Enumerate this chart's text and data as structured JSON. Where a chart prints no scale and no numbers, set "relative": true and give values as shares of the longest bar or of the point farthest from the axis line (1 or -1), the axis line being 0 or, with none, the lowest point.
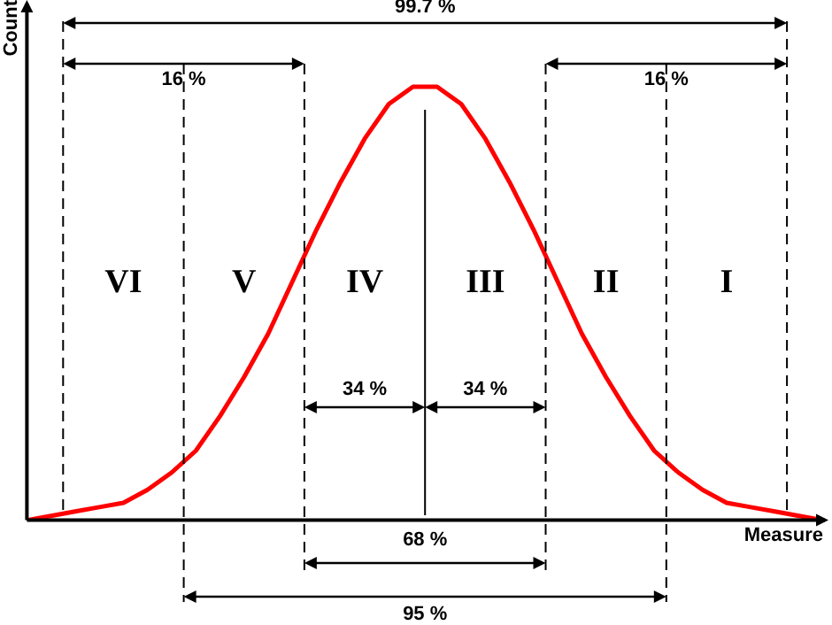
{
  "chart_data": {
    "type": "line",
    "relative": true,
    "xlabel": "Measure",
    "ylabel": "Count",
    "categories": [
      null,
      null,
      null,
      null,
      null,
      null,
      null,
      null,
      null,
      null,
      null,
      null,
      null,
      null,
      null,
      null,
      null,
      null,
      null,
      null,
      null,
      null,
      null,
      null,
      null,
      null,
      null,
      null,
      null,
      null,
      null,
      null,
      null,
      null
    ],
    "series": [
      {
        "color": "#ff0000",
        "values": [
          0,
          0.01,
          0.02,
          0.03,
          0.04,
          0.07,
          0.11,
          0.16,
          0.24,
          0.33,
          0.43,
          0.55,
          0.67,
          0.78,
          0.88,
          0.96,
          1,
          1,
          0.96,
          0.88,
          0.78,
          0.67,
          0.55,
          0.43,
          0.33,
          0.24,
          0.16,
          0.11,
          0.07,
          0.04,
          0.03,
          0.02,
          0.01,
          0
        ]
      }
    ],
    "marker": "none",
    "grid": false,
    "legend": false,
    "tick_labels": false,
    "annotations": [
      "99.7 %",
      "16 %",
      "16 %",
      "VI",
      "V",
      "IV",
      "III",
      "II",
      "I",
      "34 %",
      "34 %",
      "68 %",
      "95 %"
    ]
  }
}
